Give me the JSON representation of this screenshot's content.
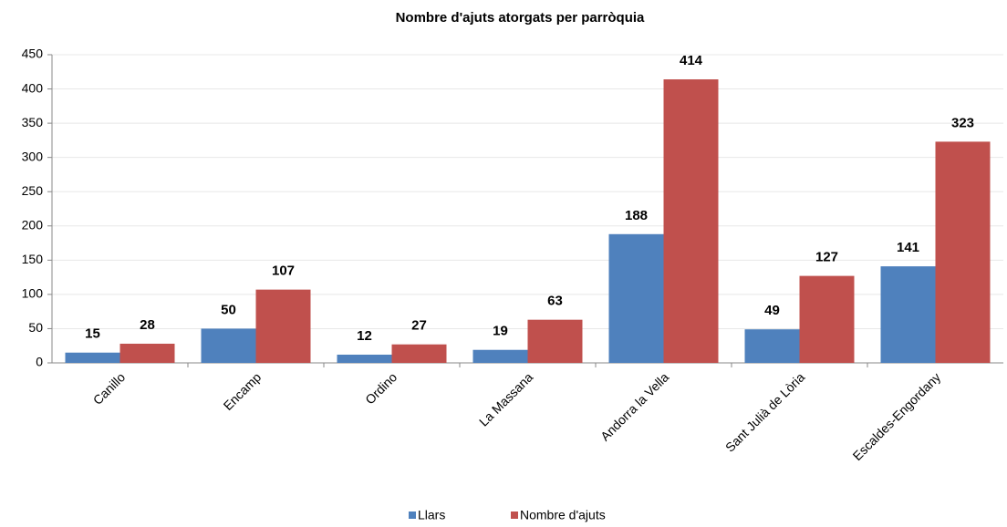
{
  "chart_data": {
    "type": "bar",
    "title": "Nombre d'ajuts atorgats per parròquia",
    "categories": [
      "Canillo",
      "Encamp",
      "Ordino",
      "La Massana",
      "Andorra la Vella",
      "Sant Julià de Lòria",
      "Escaldes-Engordany"
    ],
    "series": [
      {
        "name": "Llars",
        "color": "#4f81bd",
        "values": [
          15,
          50,
          12,
          19,
          188,
          49,
          141
        ]
      },
      {
        "name": "Nombre d'ajuts",
        "color": "#c0504d",
        "values": [
          28,
          107,
          27,
          63,
          414,
          127,
          323
        ]
      }
    ],
    "ylim": [
      0,
      450
    ],
    "yticks": [
      0,
      50,
      100,
      150,
      200,
      250,
      300,
      350,
      400,
      450
    ],
    "grid": true,
    "legend": "bottom"
  }
}
